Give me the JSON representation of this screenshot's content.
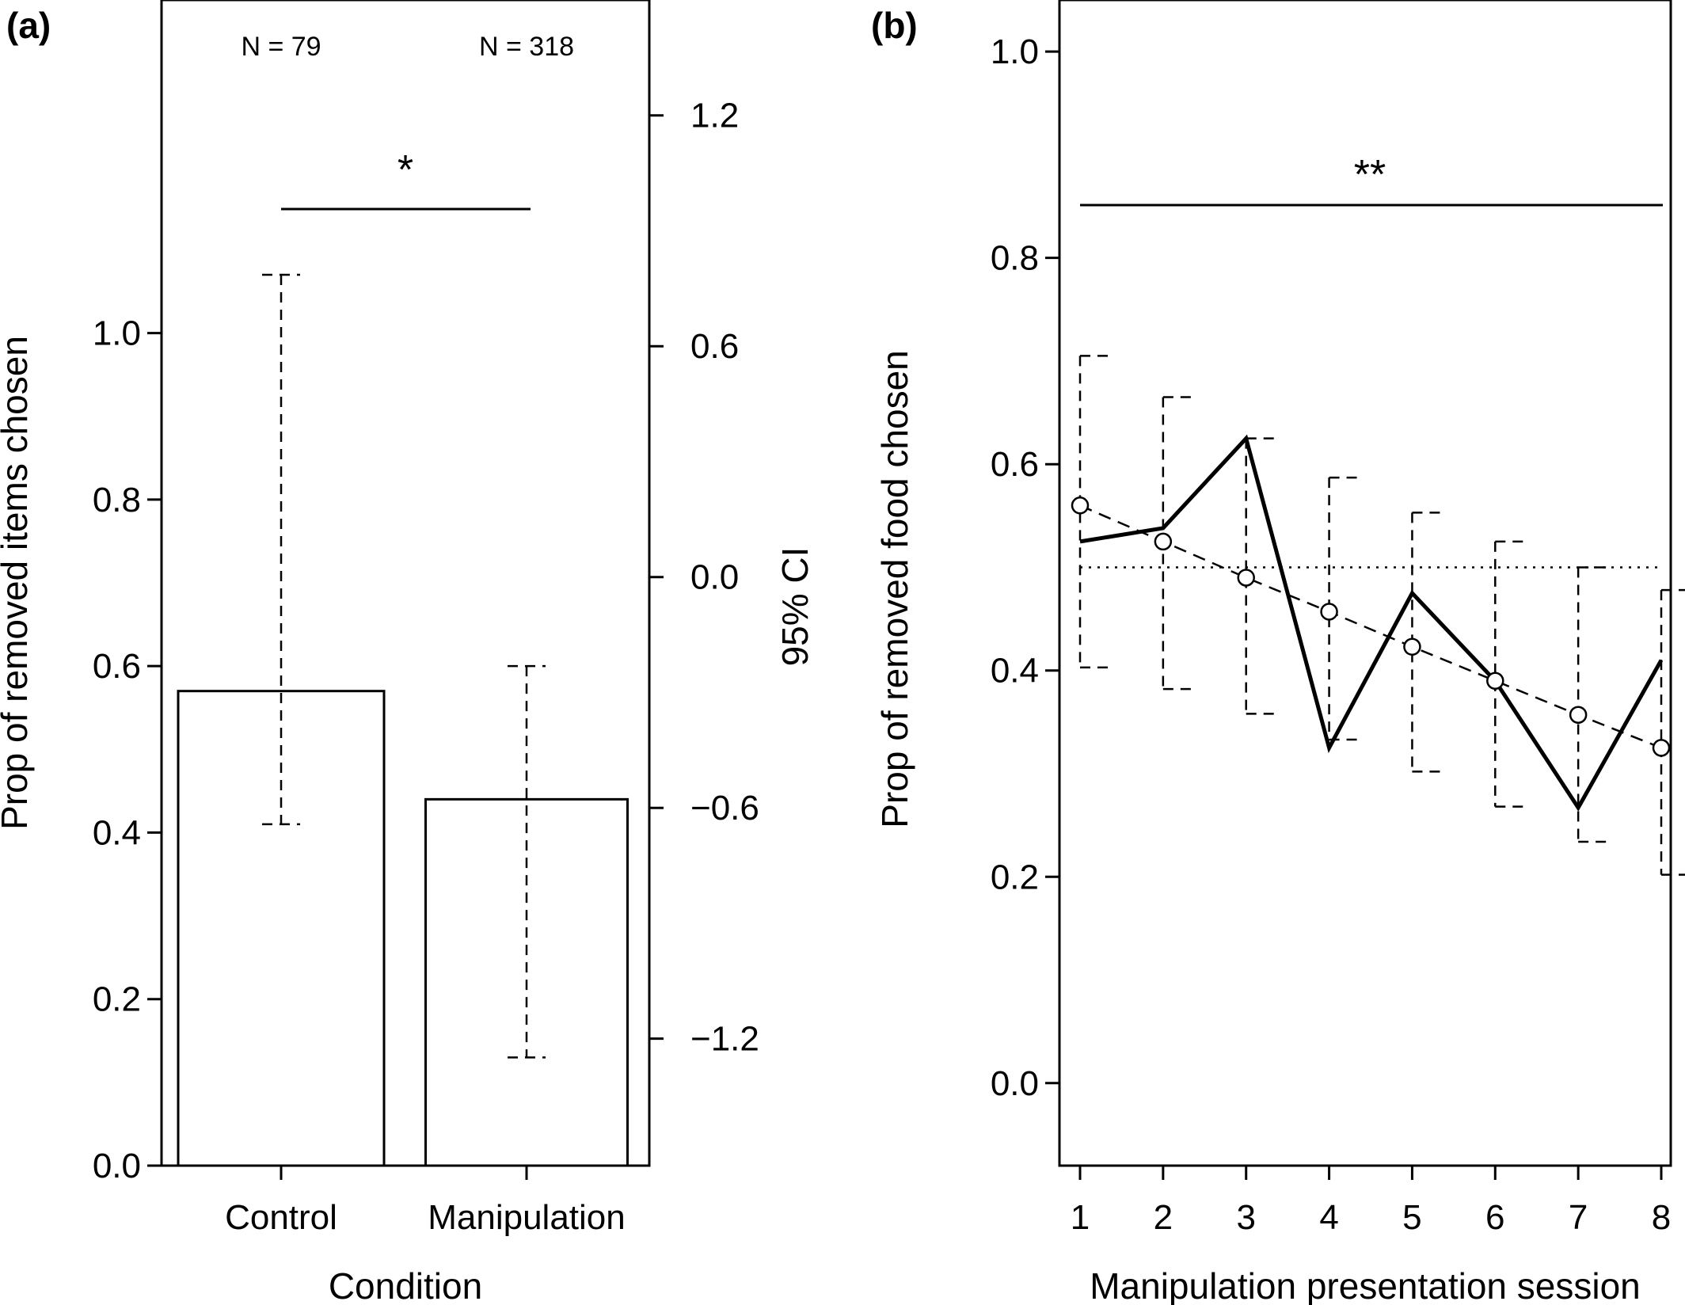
{
  "chart_data": [
    {
      "panel": "(a)",
      "type": "bar",
      "categories": [
        "Control",
        "Manipulation"
      ],
      "values": [
        0.57,
        0.44
      ],
      "ci_lower": [
        0.41,
        0.13
      ],
      "ci_upper": [
        1.07,
        0.6
      ],
      "n_labels": [
        "N = 79",
        "N = 318"
      ],
      "significance": "*",
      "xlabel": "Condition",
      "ylabel": "Prop of removed items chosen",
      "ylim": [
        0,
        1.4
      ],
      "yticks": [
        "0.0",
        "0.2",
        "0.4",
        "0.6",
        "0.8",
        "1.0"
      ],
      "y2label": "95% CI",
      "y2ticks": [
        "1.2",
        "0.6",
        "0.0",
        "−0.6",
        "−1.2"
      ],
      "y2_tick_values": [
        1.2,
        0.6,
        0.0,
        -0.6,
        -1.2
      ],
      "y2lim": [
        -1.53,
        1.5
      ],
      "grid": false
    },
    {
      "panel": "(b)",
      "type": "line",
      "x": [
        1,
        2,
        3,
        4,
        5,
        6,
        7,
        8
      ],
      "xticks": [
        "1",
        "2",
        "3",
        "4",
        "5",
        "6",
        "7",
        "8"
      ],
      "series": [
        {
          "style": "solid-thick",
          "values": [
            0.525,
            0.538,
            0.625,
            0.325,
            0.475,
            0.39,
            0.267,
            0.41
          ]
        },
        {
          "style": "dashed-with-circles",
          "values": [
            0.56,
            0.525,
            0.49,
            0.457,
            0.423,
            0.39,
            0.357,
            0.325
          ]
        }
      ],
      "ci_lower": [
        0.403,
        0.382,
        0.358,
        0.333,
        0.302,
        0.268,
        0.234,
        0.202
      ],
      "ci_upper": [
        0.705,
        0.665,
        0.625,
        0.587,
        0.553,
        0.525,
        0.5,
        0.478
      ],
      "reference_line": 0.5,
      "significance": "**",
      "xlabel": "Manipulation presentation session",
      "ylabel": "Prop of removed food chosen",
      "ylim": [
        -0.08,
        1.05
      ],
      "yticks": [
        "0.0",
        "0.2",
        "0.4",
        "0.6",
        "0.8",
        "1.0"
      ],
      "grid": false
    }
  ]
}
